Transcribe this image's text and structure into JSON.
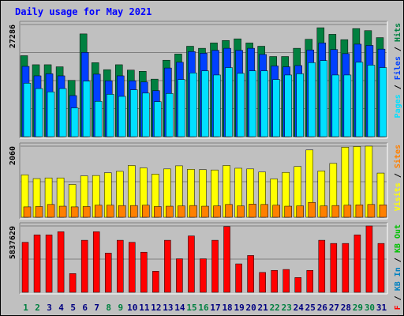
{
  "chart_data": {
    "type": "bar",
    "title": "Daily usage for May 2021",
    "categories": [
      "1",
      "2",
      "3",
      "4",
      "5",
      "6",
      "7",
      "8",
      "9",
      "10",
      "11",
      "12",
      "13",
      "14",
      "15",
      "16",
      "17",
      "18",
      "19",
      "20",
      "21",
      "22",
      "23",
      "24",
      "25",
      "26",
      "27",
      "28",
      "29",
      "30",
      "31"
    ],
    "weekend_days": [
      "1",
      "2",
      "8",
      "9",
      "15",
      "16",
      "22",
      "23",
      "29",
      "30"
    ],
    "colors": {
      "title": "#0000ff",
      "hits": "#008040",
      "files": "#0040ff",
      "pages": "#00e0ff",
      "visits": "#ffff00",
      "sites": "#ff8000",
      "kbout": "#00c000",
      "kbin": "#0080c0",
      "kbf": "#ff0000",
      "weekday_label": "#000080",
      "weekend_label": "#008040",
      "background": "#c0c0c0"
    },
    "panels": [
      {
        "name": "top",
        "ymax_label": "27286",
        "ylim": [
          0,
          27286
        ],
        "right_label": [
          {
            "text": "Pages",
            "color": "#00e0ff"
          },
          {
            "text": " / ",
            "color": "#000000"
          },
          {
            "text": "Files",
            "color": "#0040ff"
          },
          {
            "text": " / ",
            "color": "#000000"
          },
          {
            "text": "Hits",
            "color": "#008040"
          }
        ],
        "series": [
          {
            "name": "Hits",
            "color": "#008040",
            "values": [
              19700,
              17500,
              17500,
              17000,
              13700,
              25000,
              18000,
              16300,
              17500,
              16200,
              15900,
              14000,
              18600,
              20100,
              22000,
              21500,
              22800,
              23400,
              23800,
              22800,
              22000,
              19500,
              19500,
              21500,
              23700,
              26500,
              24900,
              23600,
              26300,
              25800,
              24100
            ]
          },
          {
            "name": "Files",
            "color": "#0040ff",
            "values": [
              17100,
              14800,
              15300,
              14800,
              10000,
              20500,
              15200,
              13600,
              14800,
              13600,
              13300,
              11200,
              16700,
              18100,
              20700,
              20300,
              21000,
              21500,
              21000,
              21500,
              20000,
              17200,
              17000,
              17300,
              21100,
              22800,
              21200,
              20200,
              22500,
              22200,
              21300
            ]
          },
          {
            "name": "Pages",
            "color": "#00e0ff",
            "values": [
              13000,
              11700,
              10900,
              11700,
              7000,
              13500,
              8600,
              10300,
              9800,
              11400,
              10600,
              8500,
              10500,
              13900,
              15500,
              16000,
              15000,
              16800,
              15400,
              16000,
              16000,
              13900,
              15000,
              15300,
              18000,
              18500,
              15000,
              15000,
              18100,
              17400,
              16800
            ]
          }
        ]
      },
      {
        "name": "middle",
        "ymax_label": "2060",
        "ylim": [
          0,
          2060
        ],
        "right_label": [
          {
            "text": "Visits",
            "color": "#ffff00"
          },
          {
            "text": " / ",
            "color": "#000000"
          },
          {
            "text": "Sites",
            "color": "#ff8000"
          }
        ],
        "series": [
          {
            "name": "Visits",
            "color": "#ffff00",
            "values": [
              1230,
              1120,
              1140,
              1140,
              950,
              1200,
              1210,
              1290,
              1330,
              1500,
              1430,
              1250,
              1400,
              1490,
              1390,
              1380,
              1370,
              1500,
              1420,
              1400,
              1310,
              1110,
              1300,
              1470,
              1950,
              1340,
              1560,
              2030,
              2050,
              2100,
              1280
            ]
          },
          {
            "name": "Sites",
            "color": "#ff8000",
            "values": [
              300,
              310,
              370,
              320,
              300,
              310,
              350,
              350,
              340,
              340,
              350,
              310,
              320,
              330,
              340,
              320,
              330,
              370,
              330,
              380,
              370,
              350,
              320,
              330,
              430,
              330,
              340,
              350,
              360,
              370,
              360
            ]
          }
        ]
      },
      {
        "name": "bottom",
        "ymax_label": "5837629",
        "ylim": [
          0,
          5837629
        ],
        "right_label": [
          {
            "text": "KB F",
            "color": "#ff0000"
          },
          {
            "text": " / ",
            "color": "#000000"
          },
          {
            "text": "KB In",
            "color": "#0080c0"
          },
          {
            "text": " / ",
            "color": "#000000"
          },
          {
            "text": "KB Out",
            "color": "#00c000"
          }
        ],
        "series": [
          {
            "name": "KB F",
            "color": "#ff0000",
            "values": [
              4400000,
              5050000,
              5050000,
              5330000,
              1650000,
              4580000,
              5330000,
              3450000,
              4580000,
              4400000,
              3530000,
              1850000,
              4580000,
              2950000,
              4960000,
              2950000,
              4580000,
              5790000,
              2500000,
              3240000,
              1750000,
              1930000,
              2010000,
              1300000,
              1930000,
              4580000,
              4300000,
              4300000,
              5050000,
              6000000,
              4300000
            ]
          }
        ]
      }
    ]
  }
}
